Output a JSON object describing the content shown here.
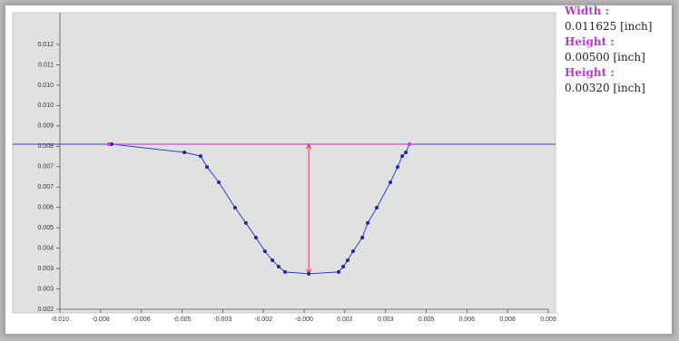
{
  "chart_data": {
    "type": "line",
    "x": [
      -0.00763,
      -0.00752,
      -0.0047,
      -0.00407,
      -0.00382,
      -0.00336,
      -0.00273,
      -0.00231,
      -0.00192,
      -0.00157,
      -0.00128,
      -0.00104,
      -0.00079,
      0.00013,
      0.00129,
      0.00147,
      0.00164,
      0.00185,
      0.00221,
      0.00242,
      0.00277,
      0.0033,
      0.00358,
      0.00376,
      0.0039,
      0.00404
    ],
    "series": [
      {
        "color": "#2b3fd6",
        "values": [
          0.00814,
          0.00814,
          0.00783,
          0.00769,
          0.00728,
          0.0067,
          0.00574,
          0.00516,
          0.00461,
          0.00409,
          0.00375,
          0.00351,
          0.00331,
          0.00324,
          0.00331,
          0.00351,
          0.00375,
          0.00409,
          0.00461,
          0.00516,
          0.00574,
          0.0067,
          0.00728,
          0.00769,
          0.00783,
          0.00814
        ]
      }
    ],
    "xlim": [
      -0.00953,
      0.00943
    ],
    "ylim": [
      0.0019,
      0.01311
    ],
    "xticks": [
      {
        "value": -0.00953,
        "label": "-0.010"
      },
      {
        "value": -0.00795,
        "label": "-0.008"
      },
      {
        "value": -0.00637,
        "label": "-0.006"
      },
      {
        "value": -0.00479,
        "label": "-0.005"
      },
      {
        "value": -0.00321,
        "label": "-0.003"
      },
      {
        "value": -0.00163,
        "label": "-0.002"
      },
      {
        "value": -5e-05,
        "label": "-0.000"
      },
      {
        "value": 0.00153,
        "label": "0.002"
      },
      {
        "value": 0.00311,
        "label": "0.003"
      },
      {
        "value": 0.00469,
        "label": "0.005"
      },
      {
        "value": 0.00627,
        "label": "0.006"
      },
      {
        "value": 0.00785,
        "label": "0.008"
      },
      {
        "value": 0.00943,
        "label": "0.009"
      }
    ],
    "yticks": [
      {
        "value": 0.0019,
        "label": "0.002"
      },
      {
        "value": 0.00267,
        "label": "0.003"
      },
      {
        "value": 0.00344,
        "label": "0.003"
      },
      {
        "value": 0.00421,
        "label": "0.004"
      },
      {
        "value": 0.00498,
        "label": "0.005"
      },
      {
        "value": 0.00575,
        "label": "0.006"
      },
      {
        "value": 0.00652,
        "label": "0.007"
      },
      {
        "value": 0.00729,
        "label": "0.007"
      },
      {
        "value": 0.00806,
        "label": "0.008"
      },
      {
        "value": 0.00883,
        "label": "0.009"
      },
      {
        "value": 0.0096,
        "label": "0.010"
      },
      {
        "value": 0.01037,
        "label": "0.010"
      },
      {
        "value": 0.01114,
        "label": "0.011"
      },
      {
        "value": 0.01191,
        "label": "0.012"
      }
    ],
    "annotations": [
      {
        "label": "Width :",
        "value": "0.011625 [inch]"
      },
      {
        "label": "Height :",
        "value": "0.00500 [inch]"
      },
      {
        "label": "Height :",
        "value": "0.00320 [inch]"
      }
    ],
    "grid": false
  }
}
